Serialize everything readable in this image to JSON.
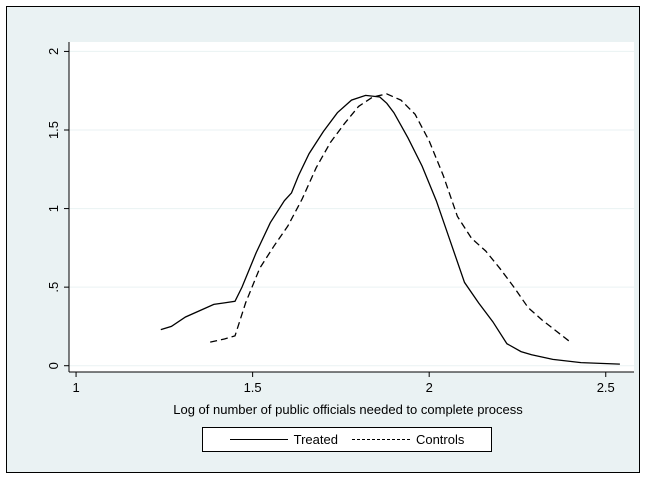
{
  "chart_data": {
    "type": "line",
    "title": "",
    "xlabel": "Log of number of public officials needed to complete process",
    "ylabel": "",
    "xlim": [
      0.98,
      2.58
    ],
    "ylim": [
      -0.04,
      2.06
    ],
    "xticks": [
      1,
      1.5,
      2,
      2.5
    ],
    "xtick_labels": [
      "1",
      "1.5",
      "2",
      "2.5"
    ],
    "yticks": [
      0,
      0.5,
      1,
      1.5,
      2
    ],
    "ytick_labels": [
      "0",
      ".5",
      "1",
      "1.5",
      "2"
    ],
    "grid": "horizontal",
    "legend_position": "bottom",
    "series": [
      {
        "name": "Treated",
        "style": "solid",
        "x": [
          1.24,
          1.27,
          1.31,
          1.36,
          1.39,
          1.42,
          1.45,
          1.47,
          1.51,
          1.55,
          1.59,
          1.61,
          1.63,
          1.66,
          1.7,
          1.74,
          1.78,
          1.82,
          1.86,
          1.88,
          1.9,
          1.94,
          1.98,
          2.02,
          2.06,
          2.1,
          2.14,
          2.18,
          2.22,
          2.26,
          2.29,
          2.35,
          2.43,
          2.54
        ],
        "y": [
          0.23,
          0.25,
          0.31,
          0.36,
          0.39,
          0.4,
          0.41,
          0.5,
          0.72,
          0.91,
          1.05,
          1.1,
          1.21,
          1.35,
          1.49,
          1.61,
          1.69,
          1.72,
          1.71,
          1.67,
          1.61,
          1.45,
          1.27,
          1.05,
          0.79,
          0.53,
          0.4,
          0.28,
          0.14,
          0.09,
          0.07,
          0.04,
          0.02,
          0.01
        ]
      },
      {
        "name": "Controls",
        "style": "dashed",
        "x": [
          1.38,
          1.42,
          1.45,
          1.48,
          1.52,
          1.56,
          1.6,
          1.64,
          1.68,
          1.72,
          1.76,
          1.8,
          1.84,
          1.88,
          1.92,
          1.96,
          2.0,
          2.04,
          2.08,
          2.12,
          2.16,
          2.2,
          2.24,
          2.28,
          2.32,
          2.36,
          2.4
        ],
        "y": [
          0.15,
          0.17,
          0.19,
          0.4,
          0.62,
          0.76,
          0.89,
          1.06,
          1.26,
          1.42,
          1.54,
          1.65,
          1.71,
          1.73,
          1.69,
          1.6,
          1.43,
          1.21,
          0.95,
          0.81,
          0.73,
          0.62,
          0.5,
          0.37,
          0.29,
          0.22,
          0.15
        ]
      }
    ]
  }
}
